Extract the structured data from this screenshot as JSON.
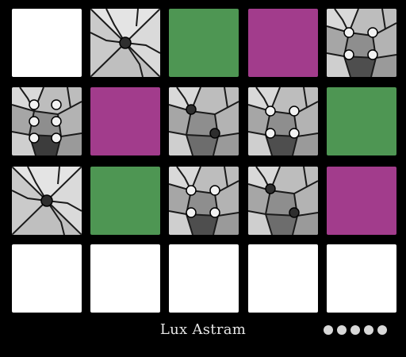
{
  "game": {
    "title": "Lux Astram",
    "lives": 5
  },
  "grid": {
    "rows": 4,
    "cols": 5,
    "tiles": [
      [
        "blank",
        "glass-1",
        "green",
        "magenta",
        "glass-4"
      ],
      [
        "glass-6",
        "magenta",
        "glass-2",
        "glass-4",
        "green"
      ],
      [
        "glass-1",
        "green",
        "glass-4",
        "glass-2",
        "magenta"
      ],
      [
        "blank",
        "blank",
        "blank",
        "blank",
        "blank"
      ]
    ]
  },
  "colors": {
    "background": "#000000",
    "green": "#4e9653",
    "magenta": "#a23c8c",
    "blank": "#ffffff",
    "glass_light": "#c9c9c9",
    "glass_dark": "#6a6a6a",
    "peg": "#2e2e2e",
    "hole": "#f2f2f2"
  }
}
